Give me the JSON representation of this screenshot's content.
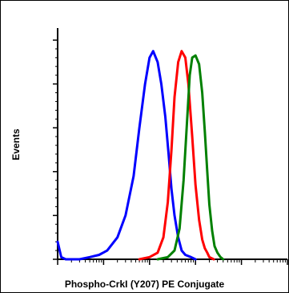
{
  "chart_data": {
    "type": "line",
    "title": "",
    "xlabel": "Phospho-CrkI (Y207) PE Conjugate",
    "ylabel": "Events",
    "x_scale": "log",
    "xlim": [
      1,
      100000
    ],
    "ylim": [
      0,
      100
    ],
    "grid": false,
    "legend": "none",
    "series": [
      {
        "color": "#0000ff",
        "x": [
          1,
          1.2,
          1.5,
          2,
          3,
          5,
          8,
          12,
          20,
          30,
          45,
          60,
          80,
          100,
          120,
          150,
          180,
          220,
          260,
          300,
          350,
          420,
          500,
          600,
          800,
          1000
        ],
        "y": [
          8,
          1,
          0,
          0,
          0,
          1,
          2,
          4,
          10,
          20,
          38,
          60,
          80,
          92,
          95,
          90,
          80,
          65,
          48,
          32,
          20,
          10,
          4,
          2,
          1,
          0
        ]
      },
      {
        "color": "#ff0000",
        "x": [
          60,
          100,
          150,
          200,
          250,
          300,
          350,
          420,
          500,
          600,
          700,
          850,
          1000,
          1200,
          1400,
          1600,
          1800,
          2000,
          2500
        ],
        "y": [
          0,
          1,
          3,
          10,
          26,
          50,
          74,
          90,
          95,
          92,
          80,
          56,
          34,
          18,
          9,
          5,
          3,
          1,
          0
        ]
      },
      {
        "color": "#008000",
        "x": [
          150,
          250,
          350,
          450,
          550,
          650,
          750,
          850,
          1000,
          1200,
          1400,
          1600,
          1800,
          2000,
          2300,
          2600,
          3000,
          3500,
          4000
        ],
        "y": [
          0,
          1,
          4,
          14,
          36,
          62,
          84,
          92,
          93,
          89,
          76,
          58,
          40,
          25,
          13,
          6,
          3,
          1,
          0
        ]
      }
    ]
  }
}
